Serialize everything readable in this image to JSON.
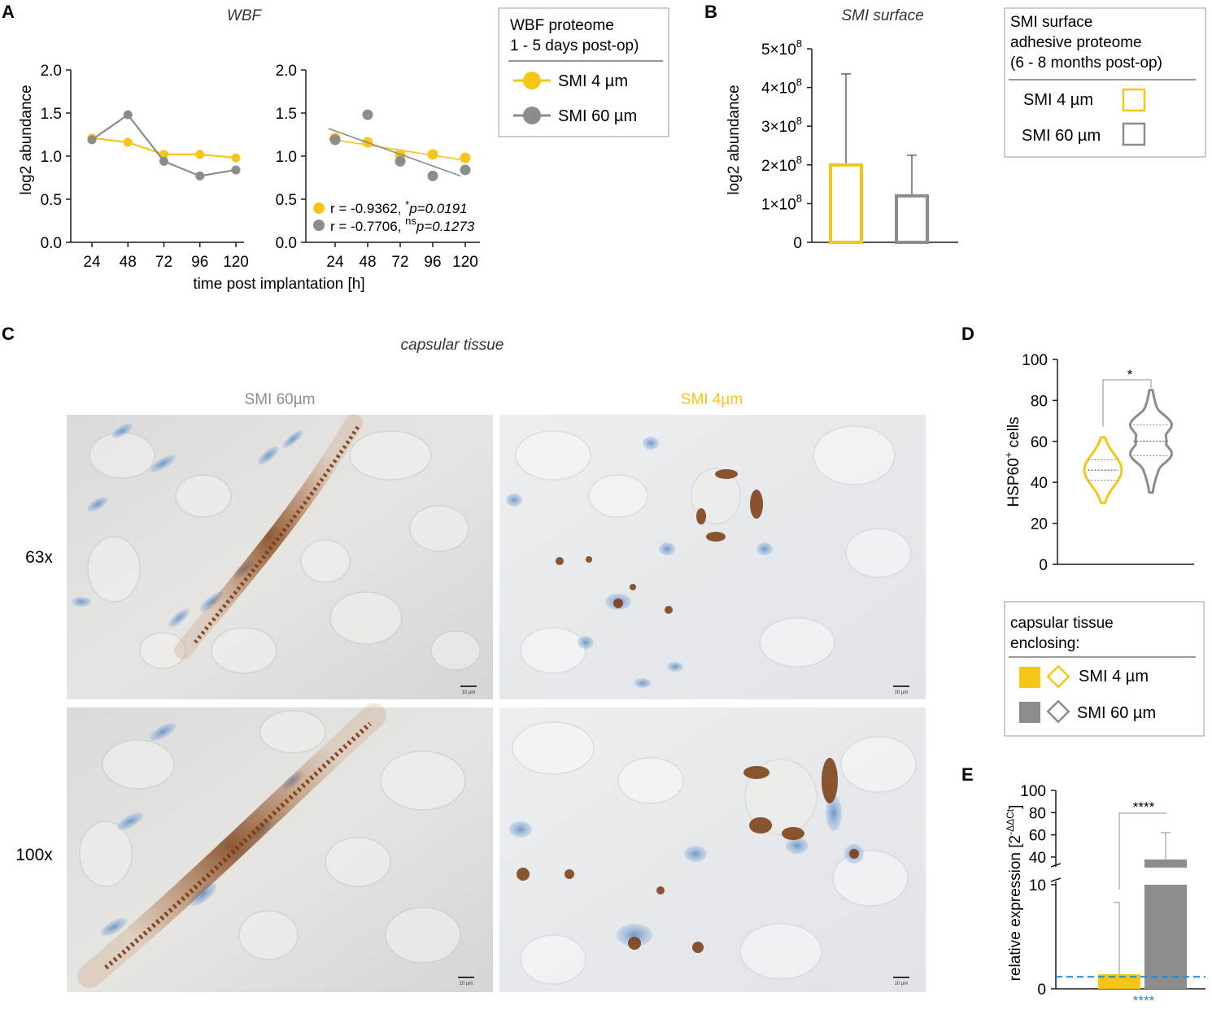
{
  "colors": {
    "yellow": "#F5C518",
    "gray": "#8C8C8C",
    "blue": "#1A8CD8"
  },
  "panel_labels": {
    "a": "A",
    "b": "B",
    "c": "C",
    "d": "D",
    "e": "E"
  },
  "panel_a": {
    "title": "WBF",
    "ylabel": "log2 abundance",
    "xlabel": "time post implantation [h]",
    "y_ticks": [
      "0.0",
      "0.5",
      "1.0",
      "1.5",
      "2.0"
    ],
    "x_ticks": [
      "24",
      "48",
      "72",
      "96",
      "120"
    ],
    "stats": [
      {
        "text": "r  = -0.9362, ",
        "sig": "*",
        "p": "p=0.0191"
      },
      {
        "text": "r  = -0.7706, ",
        "sig": "ns",
        "p": "p=0.1273"
      }
    ],
    "legend": {
      "header_line1": "WBF proteome",
      "header_line2": "1 - 5 days post-op)",
      "items": [
        "SMI 4 µm",
        "SMI 60 µm"
      ]
    }
  },
  "panel_b": {
    "title": "SMI surface",
    "ylabel": "log2 abundance",
    "y_ticks": [
      "0",
      "1×10",
      "2×10",
      "3×10",
      "4×10",
      "5×10"
    ],
    "y_tick_exp": "8",
    "legend": {
      "header_line1": "SMI surface",
      "header_line2": "adhesive proteome",
      "header_line3": "(6 - 8 months post-op)",
      "items": [
        "SMI 4 µm",
        "SMI 60 µm"
      ]
    }
  },
  "panel_c": {
    "title": "capsular tissue",
    "col_labels": [
      "SMI 60µm",
      "SMI 4µm"
    ],
    "row_labels": [
      "63x",
      "100x"
    ],
    "scale_bar": "10 µm"
  },
  "panel_d": {
    "ylabel": "HSP60",
    "ylabel_sup": "+",
    "ylabel_suffix": " cells",
    "y_ticks": [
      "0",
      "20",
      "40",
      "60",
      "80",
      "100"
    ],
    "significance": "*",
    "legend": {
      "header_line1": "capsular tissue",
      "header_line2": "enclosing:",
      "items": [
        "SMI 4 µm",
        "SMI 60 µm"
      ]
    }
  },
  "panel_e": {
    "ylabel": "relative expression [2",
    "ylabel_sup": "-ΔΔCt",
    "ylabel_suffix": "]",
    "y_ticks_upper": [
      "40",
      "60",
      "80",
      "100"
    ],
    "y_ticks_lower": [
      "0",
      "10"
    ],
    "significance_bracket": "****",
    "significance_baseline": "****"
  },
  "chart_data": [
    {
      "type": "line",
      "panel": "A-left",
      "title": "WBF",
      "xlabel": "time post implantation [h]",
      "ylabel": "log2 abundance",
      "x": [
        24,
        48,
        72,
        96,
        120
      ],
      "ylim": [
        0,
        2
      ],
      "series": [
        {
          "name": "SMI 4 µm",
          "color": "#F5C518",
          "values": [
            1.21,
            1.16,
            1.02,
            1.02,
            0.98
          ]
        },
        {
          "name": "SMI 60 µm",
          "color": "#8C8C8C",
          "values": [
            1.19,
            1.48,
            0.94,
            0.77,
            0.84
          ]
        }
      ]
    },
    {
      "type": "scatter",
      "panel": "A-right",
      "xlabel": "time post implantation [h]",
      "x": [
        24,
        48,
        72,
        96,
        120
      ],
      "ylim": [
        0,
        2
      ],
      "series": [
        {
          "name": "SMI 4 µm",
          "color": "#F5C518",
          "values": [
            1.21,
            1.16,
            1.02,
            1.02,
            0.98
          ],
          "fit": [
            1.2,
            0.96
          ],
          "r": -0.9362,
          "p": 0.0191
        },
        {
          "name": "SMI 60 µm",
          "color": "#8C8C8C",
          "values": [
            1.19,
            1.48,
            0.94,
            0.77,
            0.84
          ],
          "fit": [
            1.32,
            0.77
          ],
          "r": -0.7706,
          "p": 0.1273
        }
      ]
    },
    {
      "type": "bar",
      "panel": "B",
      "title": "SMI surface",
      "ylabel": "log2 abundance",
      "categories": [
        "SMI 4 µm",
        "SMI 60 µm"
      ],
      "values": [
        200000000,
        120000000
      ],
      "error_upper": [
        435000000,
        225000000
      ],
      "ylim": [
        0,
        500000000
      ]
    },
    {
      "type": "violin",
      "panel": "D",
      "ylabel": "HSP60+ cells",
      "categories": [
        "SMI 4 µm",
        "SMI 60 µm"
      ],
      "median": [
        46,
        60
      ],
      "quartiles": [
        [
          41,
          51
        ],
        [
          53,
          68
        ]
      ],
      "range": [
        [
          30,
          62
        ],
        [
          35,
          85
        ]
      ],
      "ylim": [
        0,
        100
      ]
    },
    {
      "type": "bar",
      "panel": "E",
      "ylabel": "relative expression [2^-ΔΔCt]",
      "categories": [
        "SMI 4 µm",
        "SMI 60 µm"
      ],
      "values": [
        1.4,
        35
      ],
      "error_upper": [
        8.3,
        62
      ],
      "baseline": 1,
      "axis_break": [
        10,
        30
      ],
      "ylim": [
        0,
        100
      ]
    }
  ]
}
